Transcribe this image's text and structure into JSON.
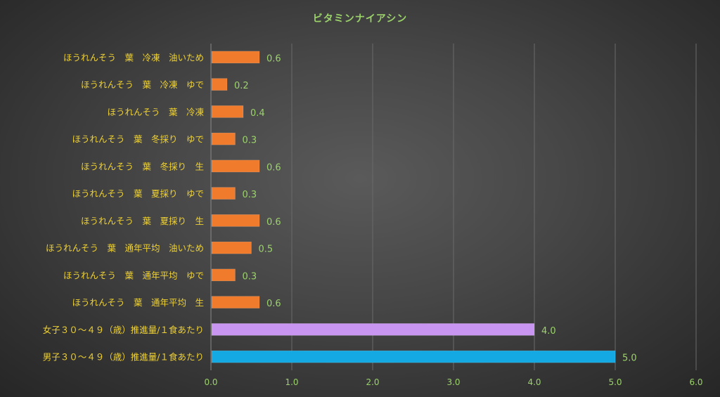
{
  "chart_data": {
    "type": "bar",
    "orientation": "horizontal",
    "title": "ビタミンナイアシン",
    "xlabel": "",
    "ylabel": "",
    "xlim": [
      0,
      6
    ],
    "x_ticks": [
      "0.0",
      "1.0",
      "2.0",
      "3.0",
      "4.0",
      "5.0",
      "6.0"
    ],
    "grid": "vertical",
    "legend": "none",
    "categories": [
      "ほうれんそう　葉　冷凍　油いため",
      "ほうれんそう　葉　冷凍　ゆで",
      "ほうれんそう　葉　冷凍",
      "ほうれんそう　葉　冬採り　ゆで",
      "ほうれんそう　葉　冬採り　生",
      "ほうれんそう　葉　夏採り　ゆで",
      "ほうれんそう　葉　夏採り　生",
      "ほうれんそう　葉　通年平均　油いため",
      "ほうれんそう　葉　通年平均　ゆで",
      "ほうれんそう　葉　通年平均　生",
      "女子３０～４９（歳）推進量/１食あたり",
      "男子３０～４９（歳）推進量/１食あたり"
    ],
    "values": [
      0.6,
      0.2,
      0.4,
      0.3,
      0.6,
      0.3,
      0.6,
      0.5,
      0.3,
      0.6,
      4.0,
      5.0
    ],
    "value_labels": [
      "0.6",
      "0.2",
      "0.4",
      "0.3",
      "0.6",
      "0.3",
      "0.6",
      "0.5",
      "0.3",
      "0.6",
      "4.0",
      "5.0"
    ],
    "bar_colors": [
      "#f07b2c",
      "#f07b2c",
      "#f07b2c",
      "#f07b2c",
      "#f07b2c",
      "#f07b2c",
      "#f07b2c",
      "#f07b2c",
      "#f07b2c",
      "#f07b2c",
      "#c895f0",
      "#14a9e2"
    ]
  },
  "colors": {
    "title": "#9bd36a",
    "category_label": "#f0d232",
    "tick_label": "#9bd36a",
    "value_label": "#9bd36a",
    "gridline": "#6a6a6a",
    "axis": "#8a8a8a"
  }
}
